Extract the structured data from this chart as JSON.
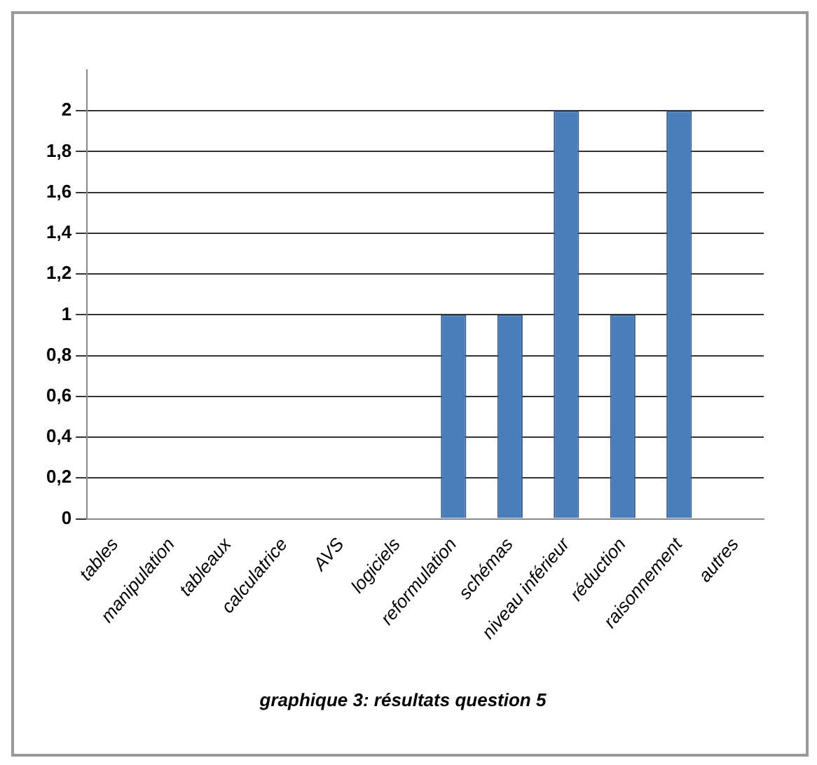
{
  "chart_data": {
    "type": "bar",
    "title": "graphique 3: résultats question 5",
    "categories": [
      "tables",
      "manipulation",
      "tableaux",
      "calculatrice",
      "AVS",
      "logiciels",
      "reformulation",
      "schémas",
      "niveau inférieur",
      "réduction",
      "raisonnement",
      "autres"
    ],
    "values": [
      0,
      0,
      0,
      0,
      0,
      0,
      1,
      1,
      2,
      1,
      2,
      0
    ],
    "color": "#4a7ebb",
    "ylim": [
      0,
      2.2
    ],
    "yticks": [
      {
        "value": 0,
        "label": "0"
      },
      {
        "value": 0.2,
        "label": "0,2"
      },
      {
        "value": 0.4,
        "label": "0,4"
      },
      {
        "value": 0.6,
        "label": "0,6"
      },
      {
        "value": 0.8,
        "label": "0,8"
      },
      {
        "value": 1,
        "label": "1"
      },
      {
        "value": 1.2,
        "label": "1,2"
      },
      {
        "value": 1.4,
        "label": "1,4"
      },
      {
        "value": 1.6,
        "label": "1,6"
      },
      {
        "value": 1.8,
        "label": "1,8"
      },
      {
        "value": 2,
        "label": "2"
      }
    ],
    "grid": "y",
    "legend": false
  }
}
